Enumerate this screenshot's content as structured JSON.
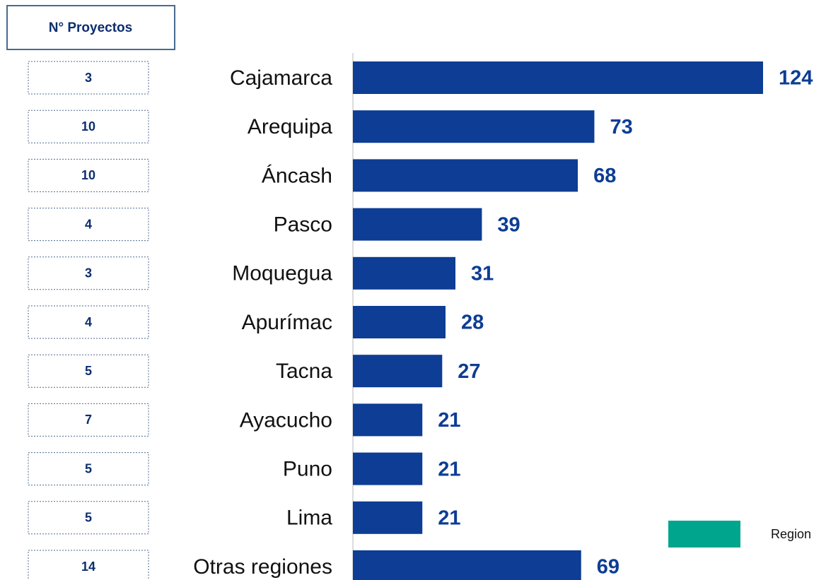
{
  "chart_data": {
    "type": "bar",
    "orientation": "horizontal",
    "categories": [
      "Cajamarca",
      "Arequipa",
      "Áncash",
      "Pasco",
      "Moquegua",
      "Apurímac",
      "Tacna",
      "Ayacucho",
      "Puno",
      "Lima",
      "Otras regiones"
    ],
    "values": [
      124,
      73,
      68,
      39,
      31,
      28,
      27,
      21,
      21,
      21,
      69
    ],
    "color": "#0d3d94",
    "xlim": [
      0,
      124
    ],
    "projects_header": "N° Proyectos",
    "projects": [
      3,
      10,
      10,
      4,
      3,
      4,
      5,
      7,
      5,
      5,
      14
    ],
    "legend": {
      "label": "Region",
      "color": "#00a58e"
    }
  }
}
